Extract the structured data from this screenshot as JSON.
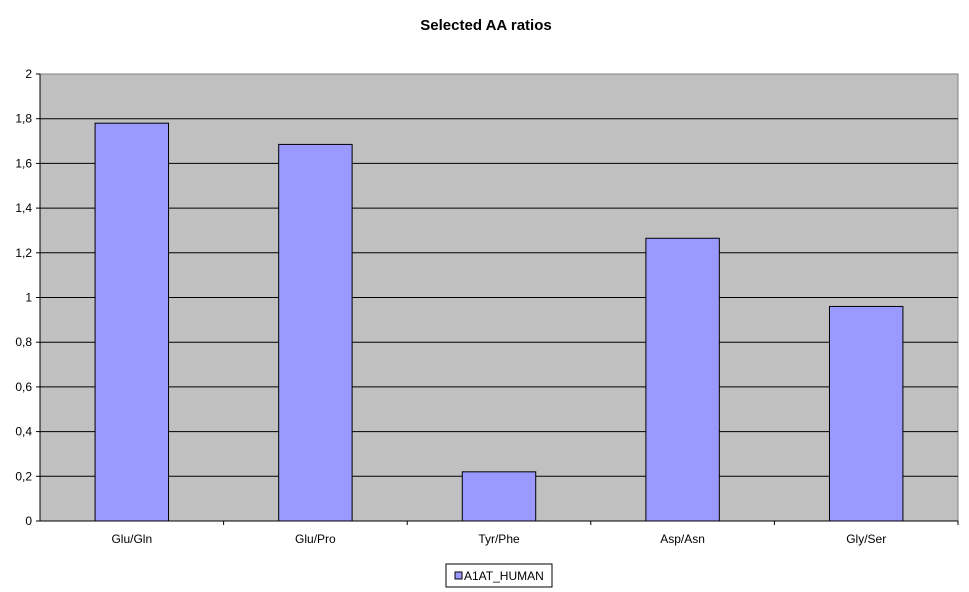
{
  "chart_data": {
    "type": "bar",
    "title": "Selected AA ratios",
    "xlabel": "",
    "ylabel": "",
    "categories": [
      "Glu/Gln",
      "Glu/Pro",
      "Tyr/Phe",
      "Asp/Asn",
      "Gly/Ser"
    ],
    "series": [
      {
        "name": "A1AT_HUMAN",
        "values": [
          1.78,
          1.685,
          0.22,
          1.265,
          0.96
        ],
        "color": "#9999ff"
      }
    ],
    "ylim": [
      0,
      2
    ],
    "yticks": [
      0,
      0.2,
      0.4,
      0.6,
      0.8,
      1,
      1.2,
      1.4,
      1.6,
      1.8,
      2
    ],
    "ytick_labels": [
      "0",
      "0,2",
      "0,4",
      "0,6",
      "0,8",
      "1",
      "1,2",
      "1,4",
      "1,6",
      "1,8",
      "2"
    ],
    "grid": true,
    "legend_position": "bottom-center",
    "plot_background": "#c0c0c0"
  }
}
